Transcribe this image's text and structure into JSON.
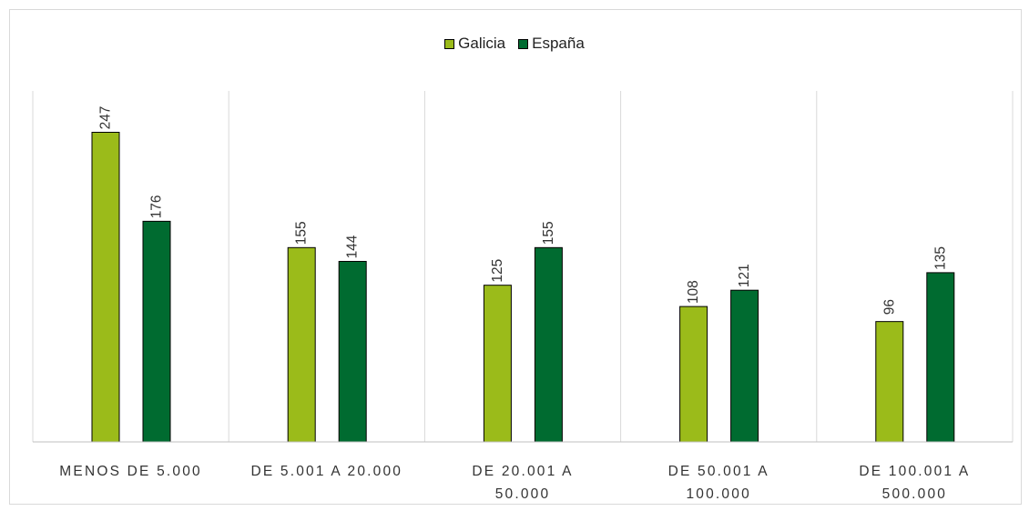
{
  "chart_data": {
    "type": "bar",
    "categories": [
      [
        "MENOS DE 5.000"
      ],
      [
        "DE 5.001 A 20.000"
      ],
      [
        "DE 20.001 A",
        "50.000"
      ],
      [
        "DE 50.001 A",
        "100.000"
      ],
      [
        "DE 100.001 A",
        "500.000"
      ]
    ],
    "series": [
      {
        "name": "Galicia",
        "color": "#9bbb1a",
        "values": [
          247,
          155,
          125,
          108,
          96
        ]
      },
      {
        "name": "España",
        "color": "#006b30",
        "values": [
          176,
          144,
          155,
          121,
          135
        ]
      }
    ],
    "ylim": [
      0,
      280
    ],
    "grid": "vertical category separators",
    "legend": "top-center",
    "data_labels": "rotated vertical"
  }
}
